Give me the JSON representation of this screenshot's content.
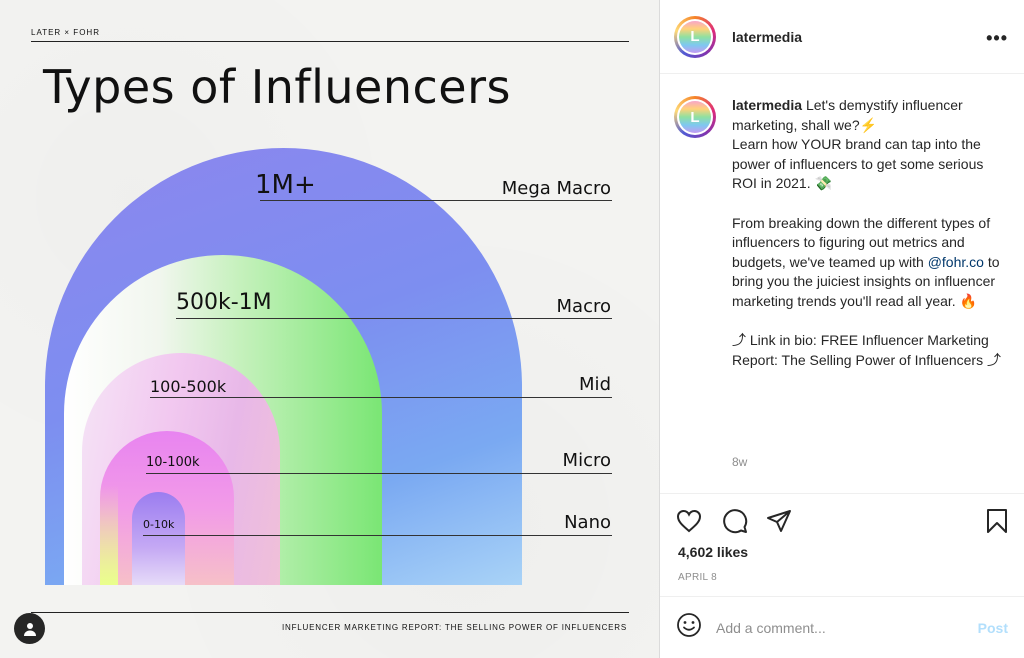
{
  "image": {
    "brand": "LATER × FOHR",
    "title": "Types of Influencers",
    "footer": "INFLUENCER MARKETING REPORT: THE SELLING POWER OF INFLUENCERS",
    "tiers": [
      {
        "range": "1M+",
        "name": "Mega Macro"
      },
      {
        "range": "500k-1M",
        "name": "Macro"
      },
      {
        "range": "100-500k",
        "name": "Mid"
      },
      {
        "range": "10-100k",
        "name": "Micro"
      },
      {
        "range": "0-10k",
        "name": "Nano"
      }
    ]
  },
  "header": {
    "username": "latermedia",
    "avatar_letter": "L"
  },
  "caption": {
    "username": "latermedia",
    "line1": "Let's demystify influencer marketing, shall we?⚡",
    "line2": "Learn how YOUR brand can tap into the power of influencers to get some serious ROI in 2021. 💸",
    "para2_before": "From breaking down the different types of influencers to figuring out metrics and budgets, we've teamed up with ",
    "mention": "@fohr.co",
    "para2_after": " to bring you the juiciest insights on influencer marketing trends you'll read all year. 🔥",
    "para3": "⤴ Link in bio: FREE Influencer Marketing Report: The Selling Power of Influencers ⤴",
    "age": "8w"
  },
  "stats": {
    "likes": "4,602 likes",
    "date": "APRIL 8"
  },
  "comment": {
    "placeholder": "Add a comment...",
    "post_label": "Post"
  },
  "colors": {
    "link": "#00376b",
    "post_disabled": "#b2dffc",
    "muted": "#8e8e8e"
  }
}
